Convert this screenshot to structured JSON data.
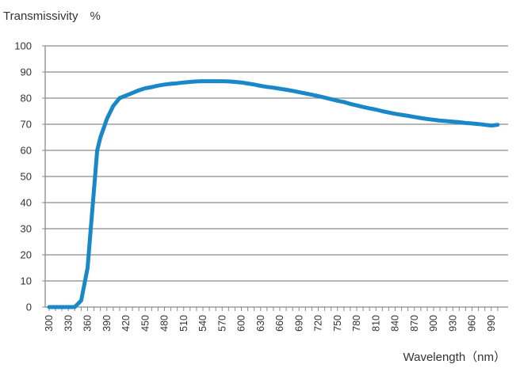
{
  "chart_data": {
    "type": "line",
    "ylabel": "Transmissivity　%",
    "xlabel": "Wavelength（nm）",
    "xlim": [
      300,
      1000
    ],
    "ylim": [
      0,
      100
    ],
    "x_ticks": [
      300,
      330,
      360,
      390,
      420,
      450,
      480,
      510,
      540,
      570,
      600,
      630,
      660,
      690,
      720,
      750,
      780,
      810,
      840,
      870,
      900,
      930,
      960,
      990
    ],
    "y_ticks": [
      0,
      10,
      20,
      30,
      40,
      50,
      60,
      70,
      80,
      90,
      100
    ],
    "grid": true,
    "series": [
      {
        "color": "#1a87c9",
        "x": [
          300,
          310,
          320,
          330,
          340,
          350,
          360,
          365,
          370,
          375,
          380,
          390,
          400,
          410,
          420,
          430,
          440,
          450,
          460,
          470,
          480,
          490,
          500,
          510,
          520,
          530,
          540,
          550,
          560,
          570,
          580,
          590,
          600,
          610,
          620,
          630,
          640,
          650,
          660,
          670,
          680,
          690,
          700,
          710,
          720,
          730,
          740,
          750,
          760,
          770,
          780,
          790,
          800,
          810,
          820,
          830,
          840,
          850,
          860,
          870,
          880,
          890,
          900,
          910,
          920,
          930,
          940,
          950,
          960,
          970,
          980,
          990,
          1000
        ],
        "y": [
          0,
          0,
          0,
          0,
          0,
          2.5,
          15,
          30,
          45,
          60,
          65,
          72,
          77,
          80,
          81,
          82,
          83,
          83.8,
          84.2,
          84.8,
          85.2,
          85.5,
          85.7,
          86,
          86.2,
          86.4,
          86.5,
          86.5,
          86.5,
          86.5,
          86.4,
          86.2,
          86,
          85.6,
          85.2,
          84.7,
          84.3,
          84,
          83.6,
          83.2,
          82.8,
          82.3,
          81.8,
          81.3,
          80.8,
          80.2,
          79.6,
          79,
          78.5,
          77.8,
          77.2,
          76.6,
          76.1,
          75.6,
          75,
          74.5,
          74,
          73.6,
          73.2,
          72.8,
          72.4,
          72,
          71.7,
          71.4,
          71.2,
          71,
          70.8,
          70.5,
          70.3,
          70.1,
          69.8,
          69.5,
          69.8
        ]
      }
    ]
  }
}
